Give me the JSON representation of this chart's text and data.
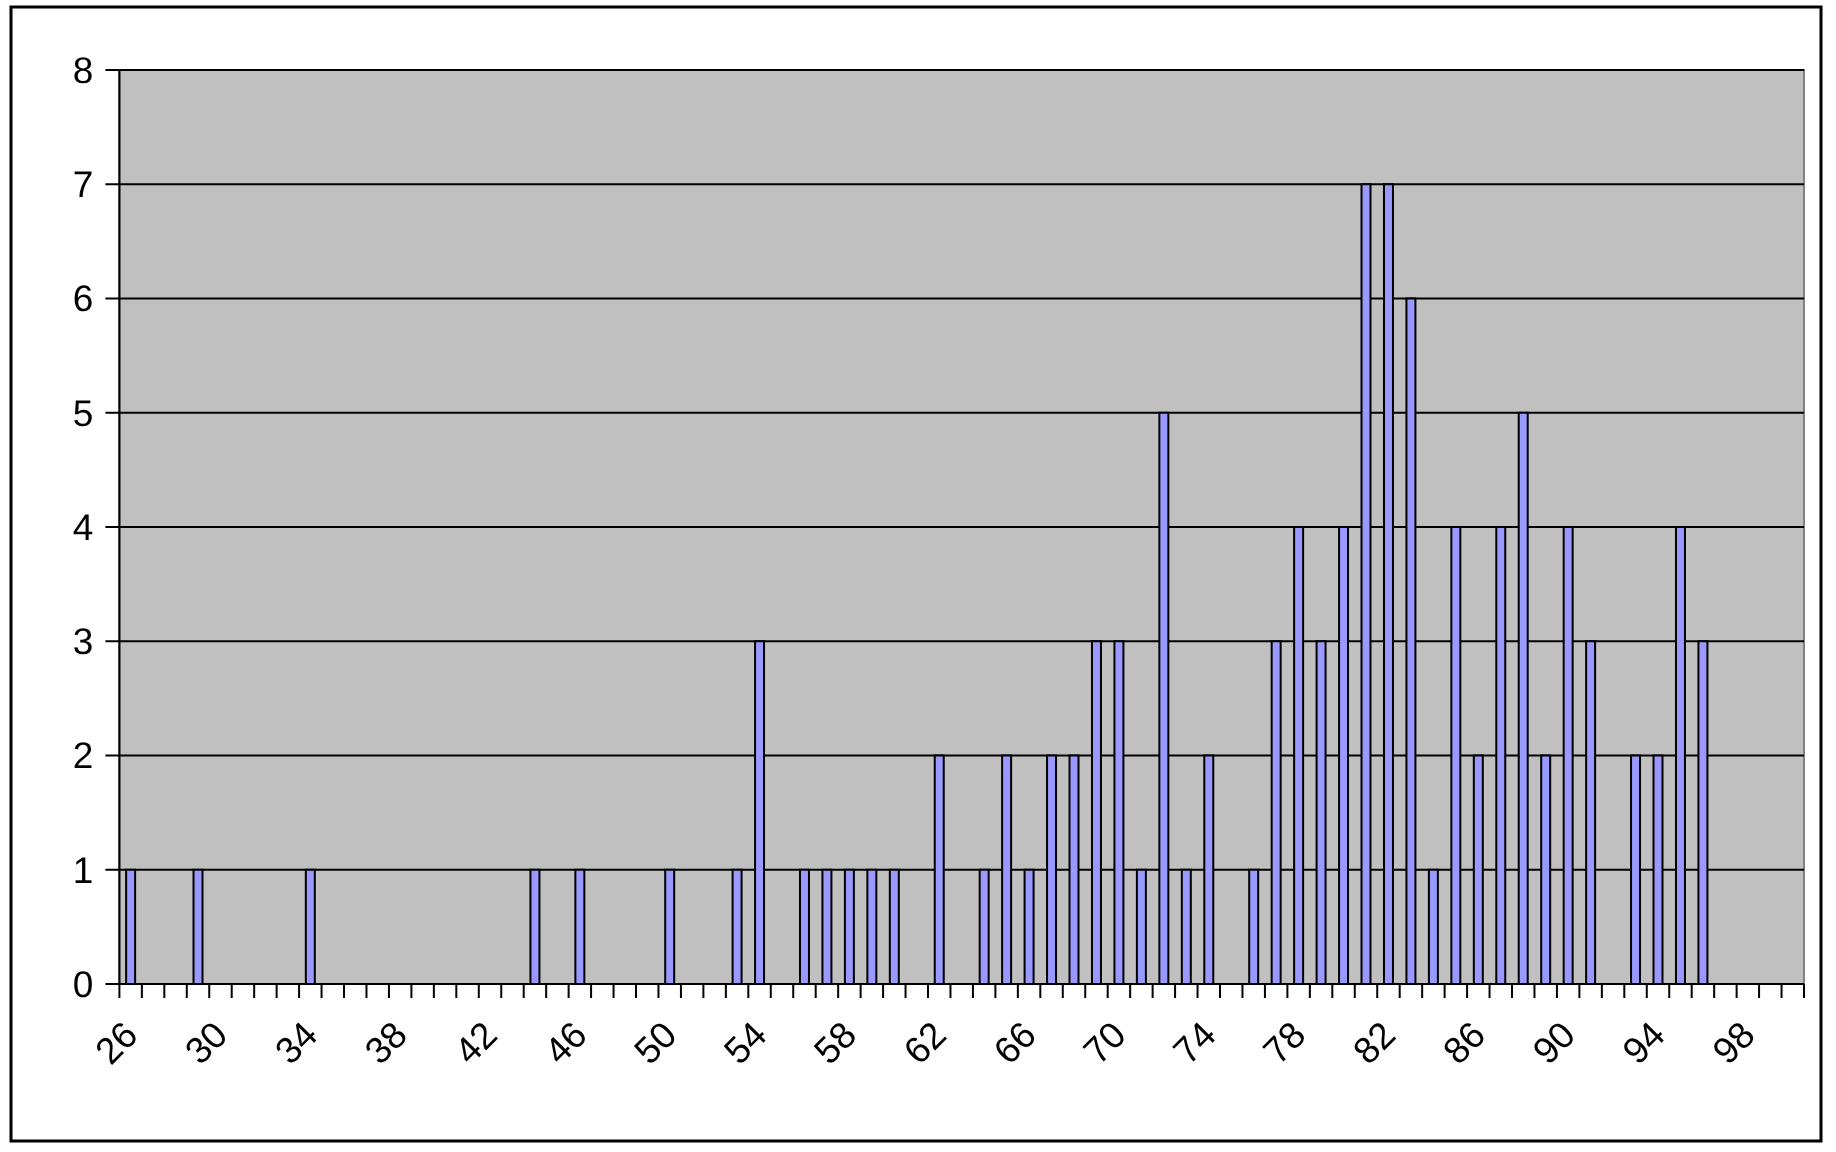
{
  "chart_data": {
    "type": "bar",
    "categories": [
      "26",
      null,
      null,
      null,
      "30",
      null,
      null,
      null,
      "34",
      null,
      null,
      null,
      "38",
      null,
      null,
      null,
      "42",
      null,
      null,
      null,
      "46",
      null,
      null,
      null,
      "50",
      null,
      null,
      null,
      "54",
      null,
      null,
      null,
      "58",
      null,
      null,
      null,
      "62",
      null,
      null,
      null,
      "66",
      null,
      null,
      null,
      "70",
      null,
      null,
      null,
      "74",
      null,
      null,
      null,
      "78",
      null,
      null,
      null,
      "82",
      null,
      null,
      null,
      "86",
      null,
      null,
      null,
      "90",
      null,
      null,
      null,
      "94",
      null,
      null,
      null,
      "98",
      null,
      null
    ],
    "values": [
      1,
      null,
      null,
      1,
      null,
      null,
      null,
      null,
      1,
      null,
      null,
      null,
      null,
      null,
      null,
      null,
      null,
      null,
      1,
      null,
      1,
      null,
      null,
      null,
      1,
      null,
      null,
      1,
      3,
      null,
      1,
      1,
      1,
      1,
      1,
      null,
      2,
      null,
      1,
      2,
      1,
      2,
      2,
      3,
      3,
      1,
      5,
      1,
      2,
      null,
      1,
      3,
      4,
      3,
      4,
      7,
      7,
      6,
      1,
      4,
      2,
      4,
      5,
      2,
      4,
      3,
      null,
      2,
      2,
      4,
      3,
      null,
      null,
      null,
      null
    ],
    "color": "#9999ff",
    "ylim": [
      0,
      8
    ],
    "yticks": [
      0,
      1,
      2,
      3,
      4,
      5,
      6,
      7,
      8
    ],
    "grid": "y"
  }
}
